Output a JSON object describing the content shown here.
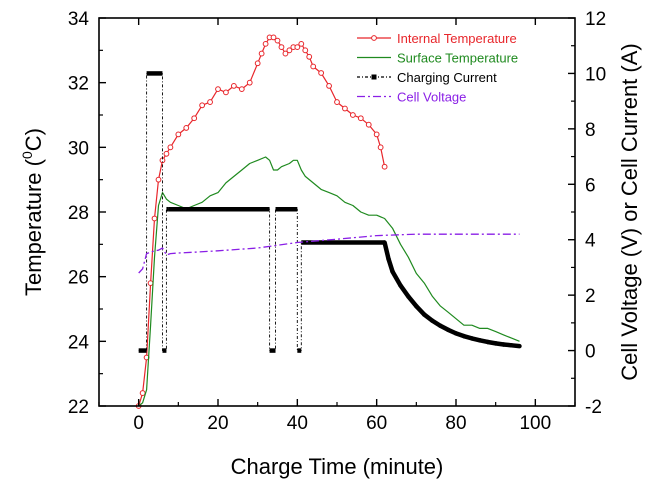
{
  "chart_data": {
    "type": "line",
    "x_axis": {
      "label": "Charge Time (minute)",
      "range": [
        -10,
        110
      ],
      "ticks": [
        0,
        20,
        40,
        60,
        80,
        100
      ]
    },
    "y_axis_left": {
      "label_main": "Temperature (",
      "label_sup": "0",
      "label_tail": "C)",
      "range": [
        22,
        34
      ],
      "ticks": [
        22,
        24,
        26,
        28,
        30,
        32,
        34
      ]
    },
    "y_axis_right": {
      "label": "Cell Voltage (V) or Cell Current (A)",
      "range": [
        -2,
        12
      ],
      "ticks": [
        -2,
        0,
        2,
        4,
        6,
        8,
        10,
        12
      ]
    },
    "grid": false,
    "legend": {
      "placement": "top-right"
    },
    "series": [
      {
        "name": "Internal Temperature",
        "axis": "left",
        "color": "#e8262b",
        "style": "line-open-circles",
        "x": [
          0,
          1,
          2,
          3,
          4,
          5,
          6,
          7,
          8,
          10,
          12,
          14,
          16,
          18,
          20,
          22,
          24,
          26,
          28,
          30,
          31,
          32,
          33,
          34,
          35,
          36,
          37,
          38,
          39,
          40,
          41,
          42,
          43,
          44,
          46,
          48,
          50,
          52,
          54,
          56,
          58,
          60,
          61,
          62
        ],
        "y": [
          22.0,
          22.4,
          23.5,
          25.8,
          27.8,
          29.0,
          29.6,
          29.8,
          30.0,
          30.4,
          30.6,
          30.9,
          31.3,
          31.4,
          31.8,
          31.7,
          31.9,
          31.8,
          32.0,
          32.6,
          32.9,
          33.2,
          33.4,
          33.4,
          33.3,
          33.1,
          32.9,
          33.0,
          33.1,
          33.1,
          33.2,
          33.0,
          32.8,
          32.5,
          32.3,
          31.9,
          31.4,
          31.2,
          31.0,
          30.9,
          30.7,
          30.4,
          30.0,
          29.4
        ]
      },
      {
        "name": "Surface Temperature",
        "axis": "left",
        "color": "#1f8a1f",
        "style": "line",
        "x": [
          0,
          1,
          2,
          3,
          4,
          5,
          6,
          7,
          8,
          10,
          12,
          14,
          16,
          18,
          20,
          22,
          24,
          26,
          28,
          30,
          32,
          33,
          34,
          35,
          36,
          38,
          39,
          40,
          41,
          42,
          44,
          46,
          48,
          50,
          52,
          54,
          56,
          58,
          60,
          62,
          64,
          66,
          68,
          70,
          72,
          74,
          76,
          78,
          80,
          82,
          84,
          86,
          88,
          90,
          92,
          94,
          96
        ],
        "y": [
          22.0,
          22.1,
          22.5,
          24.5,
          26.6,
          28.2,
          28.6,
          28.4,
          28.3,
          28.2,
          28.1,
          28.2,
          28.3,
          28.5,
          28.6,
          28.9,
          29.1,
          29.3,
          29.5,
          29.6,
          29.7,
          29.6,
          29.3,
          29.3,
          29.4,
          29.5,
          29.6,
          29.6,
          29.3,
          29.1,
          28.9,
          28.7,
          28.6,
          28.5,
          28.3,
          28.2,
          28.0,
          27.9,
          27.9,
          27.8,
          27.5,
          27.0,
          26.6,
          26.1,
          25.8,
          25.4,
          25.1,
          24.9,
          24.7,
          24.5,
          24.5,
          24.4,
          24.4,
          24.3,
          24.2,
          24.1,
          24.0
        ]
      },
      {
        "name": "Charging Current",
        "axis": "right",
        "color": "#000000",
        "style": "step-dashdot-squares",
        "x": [
          0,
          2,
          2,
          6,
          6,
          7,
          7,
          7.5,
          7.5,
          33,
          33,
          34.5,
          34.5,
          40,
          40,
          41,
          41,
          62,
          63,
          64,
          66,
          68,
          70,
          72,
          74,
          76,
          78,
          80,
          82,
          84,
          86,
          88,
          90,
          92,
          94,
          96
        ],
        "y": [
          0,
          0,
          10,
          10,
          0,
          0,
          5.1,
          5.1,
          5.1,
          5.1,
          0,
          0,
          5.1,
          5.1,
          0,
          0,
          3.9,
          3.9,
          3.3,
          2.85,
          2.35,
          1.95,
          1.6,
          1.3,
          1.08,
          0.9,
          0.75,
          0.62,
          0.52,
          0.44,
          0.37,
          0.31,
          0.26,
          0.22,
          0.19,
          0.16
        ]
      },
      {
        "name": "Cell Voltage",
        "axis": "right",
        "color": "#8a1fe6",
        "style": "dash-dot",
        "x": [
          0,
          1,
          2,
          3,
          4,
          5,
          6,
          7,
          8,
          10,
          14,
          20,
          30,
          40,
          50,
          60,
          70,
          80,
          90,
          96
        ],
        "y": [
          2.8,
          2.95,
          3.5,
          3.55,
          3.6,
          3.62,
          3.7,
          3.45,
          3.5,
          3.52,
          3.55,
          3.6,
          3.7,
          3.9,
          4.02,
          4.15,
          4.2,
          4.2,
          4.2,
          4.2
        ]
      }
    ]
  }
}
